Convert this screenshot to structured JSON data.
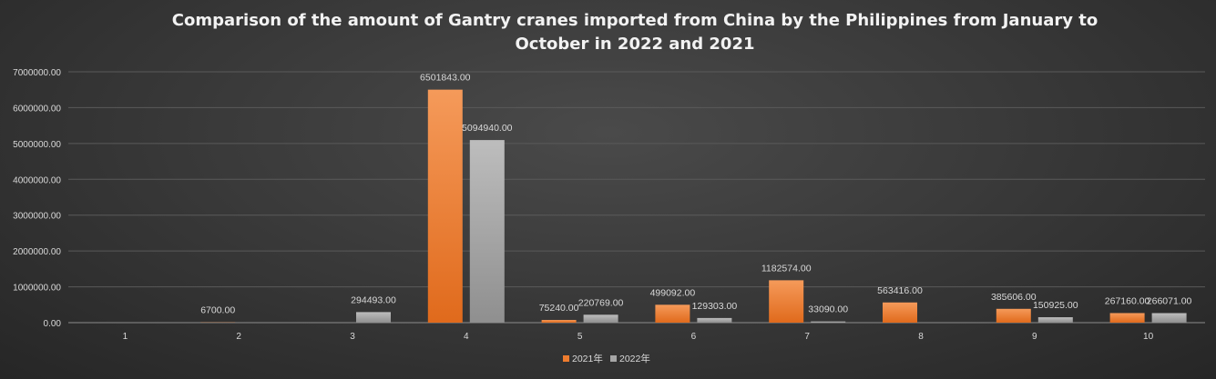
{
  "colors": {
    "series_2021": "#ee7c2e",
    "series_2022": "#a6a6a6"
  },
  "chart_data": {
    "type": "bar",
    "title_line1": "Comparison of the amount of Gantry cranes imported from China by the Philippines from January to",
    "title_line2": "October in 2022 and 2021",
    "categories": [
      "1",
      "2",
      "3",
      "4",
      "5",
      "6",
      "7",
      "8",
      "9",
      "10"
    ],
    "series": [
      {
        "name": "2021年",
        "values": [
          0,
          6700,
          0,
          6501843,
          75240,
          499092,
          1182574,
          563416,
          385606,
          267160
        ],
        "labels": [
          "",
          "6700.00",
          "",
          "6501843.00",
          "75240.00",
          "499092.00",
          "1182574.00",
          "563416.00",
          "385606.00",
          "267160.00"
        ]
      },
      {
        "name": "2022年",
        "values": [
          0,
          0,
          294493,
          5094940,
          220769,
          129303,
          33090,
          0,
          150925,
          266071
        ],
        "labels": [
          "",
          "",
          "294493.00",
          "5094940.00",
          "220769.00",
          "129303.00",
          "33090.00",
          "",
          "150925.00",
          "266071.00"
        ]
      }
    ],
    "yticks": [
      "0.00",
      "1000000.00",
      "2000000.00",
      "3000000.00",
      "4000000.00",
      "5000000.00",
      "6000000.00",
      "7000000.00"
    ],
    "ylim": [
      0,
      7000000
    ],
    "grid": true,
    "legend_position": "bottom"
  }
}
